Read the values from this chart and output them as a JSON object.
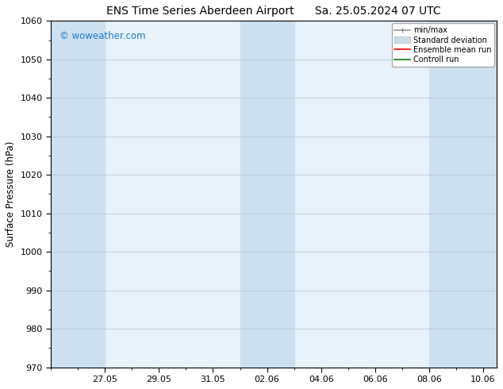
{
  "title": "ENS Time Series Aberdeen Airport",
  "title2": "Sa. 25.05.2024 07 UTC",
  "ylabel": "Surface Pressure (hPa)",
  "ylim": [
    970,
    1060
  ],
  "yticks": [
    970,
    980,
    990,
    1000,
    1010,
    1020,
    1030,
    1040,
    1050,
    1060
  ],
  "xtick_labels": [
    "27.05",
    "29.05",
    "31.05",
    "02.06",
    "04.06",
    "06.06",
    "08.06",
    "10.06"
  ],
  "xtick_positions": [
    2,
    4,
    6,
    8,
    10,
    12,
    14,
    16
  ],
  "watermark": "© woweather.com",
  "watermark_color": "#1a7ccc",
  "bg_color": "#ffffff",
  "plot_bg_color": "#e8f2fb",
  "shaded_band_color": "#cce0f0",
  "grid_color": "#b0c4d8",
  "x_min": 0,
  "x_max": 16.5,
  "shaded_ranges": [
    [
      0,
      2
    ],
    [
      7,
      9
    ],
    [
      14,
      16.5
    ]
  ],
  "legend_fontsize": 7,
  "title_fontsize": 10,
  "ylabel_fontsize": 8.5,
  "tick_labelsize": 8
}
